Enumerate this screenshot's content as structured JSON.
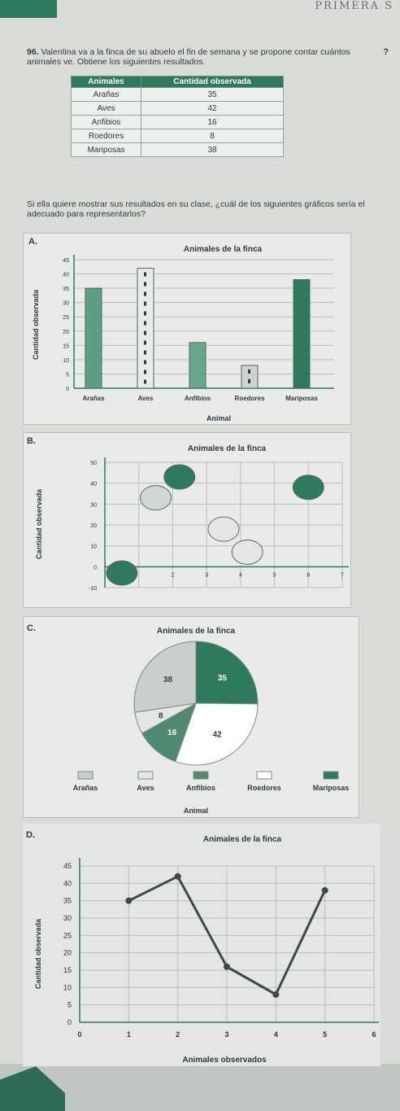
{
  "header": {
    "word": "PRIMERA S"
  },
  "question": {
    "number": "96.",
    "text": "Valentina va a la finca de su abuelo el fin de semana y se propone contar cuántos animales ve. Obtiene los siguientes resultados.",
    "mark": "?"
  },
  "table": {
    "headers": [
      "Animales",
      "Cantidad observada"
    ],
    "rows": [
      [
        "Arañas",
        "35"
      ],
      [
        "Aves",
        "42"
      ],
      [
        "Anfibios",
        "16"
      ],
      [
        "Roedores",
        "8"
      ],
      [
        "Mariposas",
        "38"
      ]
    ]
  },
  "question2": {
    "text": "Si ella quiere mostrar sus resultados en su clase, ¿cuál de los siguientes gráficos sería el adecuado para representarlos?"
  },
  "options": {
    "a": {
      "letter": "A.",
      "title": "Animales de la finca",
      "ylabel": "Cantidad observada",
      "xlabel": "Animal",
      "yticks": [
        "45",
        "40",
        "35",
        "30",
        "25",
        "20",
        "15",
        "10",
        "5",
        "0"
      ],
      "categories": [
        "Arañas",
        "Aves",
        "Anfibios",
        "Roedores",
        "Mariposas"
      ]
    },
    "b": {
      "letter": "B.",
      "title": "Animales de la finca",
      "ylabel": "Cantidad observada",
      "yticks": [
        "50",
        "40",
        "30",
        "20",
        "10",
        "0",
        "-10"
      ],
      "xticks": [
        "0",
        "2",
        "3",
        "4",
        "5",
        "6",
        "7"
      ]
    },
    "c": {
      "letter": "C.",
      "title": "Animales de la finca",
      "xlabel": "Animal",
      "slice_labels": [
        "38",
        "35",
        "8",
        "16",
        "42"
      ],
      "legend": [
        "Arañas",
        "Aves",
        "Anfibios",
        "Roedores",
        "Mariposas"
      ]
    },
    "d": {
      "letter": "D.",
      "title": "Animales de la finca",
      "ylabel": "Cantidad observada",
      "xlabel": "Animales observados",
      "yticks": [
        "45",
        "40",
        "35",
        "30",
        "25",
        "20",
        "15",
        "10",
        "5",
        "0"
      ],
      "xticks": [
        "0",
        "1",
        "2",
        "3",
        "4",
        "5",
        "6"
      ]
    }
  },
  "chart_data": [
    {
      "type": "bar",
      "title": "Animales de la finca",
      "xlabel": "Animal",
      "ylabel": "Cantidad observada",
      "categories": [
        "Arañas",
        "Aves",
        "Anfibios",
        "Roedores",
        "Mariposas"
      ],
      "values": [
        35,
        42,
        16,
        8,
        38
      ],
      "ylim": [
        0,
        45
      ],
      "colors": [
        "#5c9e7f",
        "#e9ebe8",
        "#6aa58a",
        "#cfd3d0",
        "#2f7a5c"
      ]
    },
    {
      "type": "scatter",
      "title": "Animales de la finca",
      "ylabel": "Cantidad observada",
      "ylim": [
        -10,
        50
      ],
      "xlim": [
        0,
        7
      ],
      "points": [
        {
          "x": 0.5,
          "y": -3,
          "color": "#2f7a5c"
        },
        {
          "x": 1.5,
          "y": 33,
          "color": "#cfd8d2"
        },
        {
          "x": 2.2,
          "y": 43,
          "color": "#2f7a5c"
        },
        {
          "x": 3.5,
          "y": 18,
          "color": "#e4e6e4"
        },
        {
          "x": 4.2,
          "y": 7,
          "color": "#e4e6e4"
        },
        {
          "x": 6,
          "y": 38,
          "color": "#2f7a5c"
        }
      ]
    },
    {
      "type": "pie",
      "title": "Animales de la finca",
      "xlabel": "Animal",
      "slices": [
        {
          "label": "35",
          "value": 35,
          "color": "#2f7a5c"
        },
        {
          "label": "42",
          "value": 42,
          "color": "#ffffff"
        },
        {
          "label": "16",
          "value": 16,
          "color": "#4f8a70"
        },
        {
          "label": "8",
          "value": 8,
          "color": "#e4e6e4"
        },
        {
          "label": "38",
          "value": 38,
          "color": "#c9cfcb"
        }
      ],
      "legend": [
        "Arañas",
        "Aves",
        "Anfibios",
        "Roedores",
        "Mariposas"
      ]
    },
    {
      "type": "line",
      "title": "Animales de la finca",
      "xlabel": "Animales observados",
      "ylabel": "Cantidad observada",
      "x": [
        1,
        2,
        3,
        4,
        5
      ],
      "y": [
        35,
        42,
        16,
        8,
        38
      ],
      "ylim": [
        0,
        45
      ],
      "xlim": [
        0,
        6
      ],
      "color": "#3a4a45"
    }
  ]
}
